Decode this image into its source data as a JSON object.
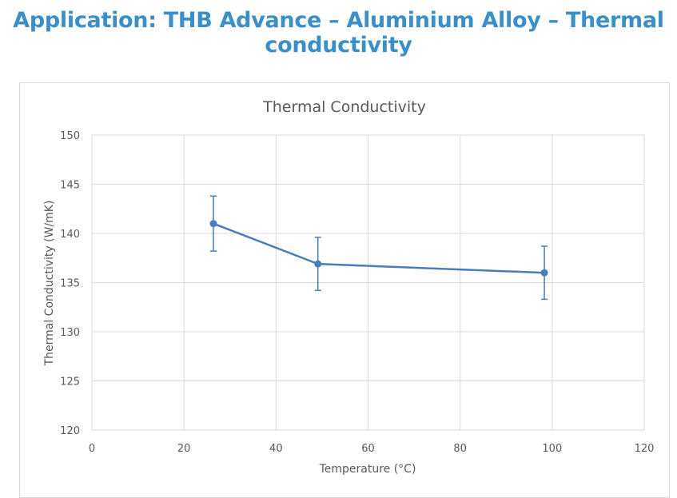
{
  "page_title": "Application: THB Advance – Aluminium Alloy – Thermal conductivity",
  "chart_data": {
    "type": "line",
    "title": "Thermal Conductivity",
    "xlabel": "Temperature (°C)",
    "ylabel": "Thermal Conductivity (W/mK)",
    "xlim": [
      0,
      120
    ],
    "ylim": [
      120,
      150
    ],
    "xticks": [
      0,
      20,
      40,
      60,
      80,
      100,
      120
    ],
    "yticks": [
      120,
      125,
      130,
      135,
      140,
      145,
      150
    ],
    "grid": true,
    "series": [
      {
        "name": "Thermal Conductivity",
        "color": "#4a7ebb",
        "x": [
          26.4,
          49.1,
          98.3
        ],
        "y": [
          141.0,
          136.9,
          136.0
        ],
        "error": [
          2.8,
          2.7,
          2.7
        ]
      }
    ]
  }
}
